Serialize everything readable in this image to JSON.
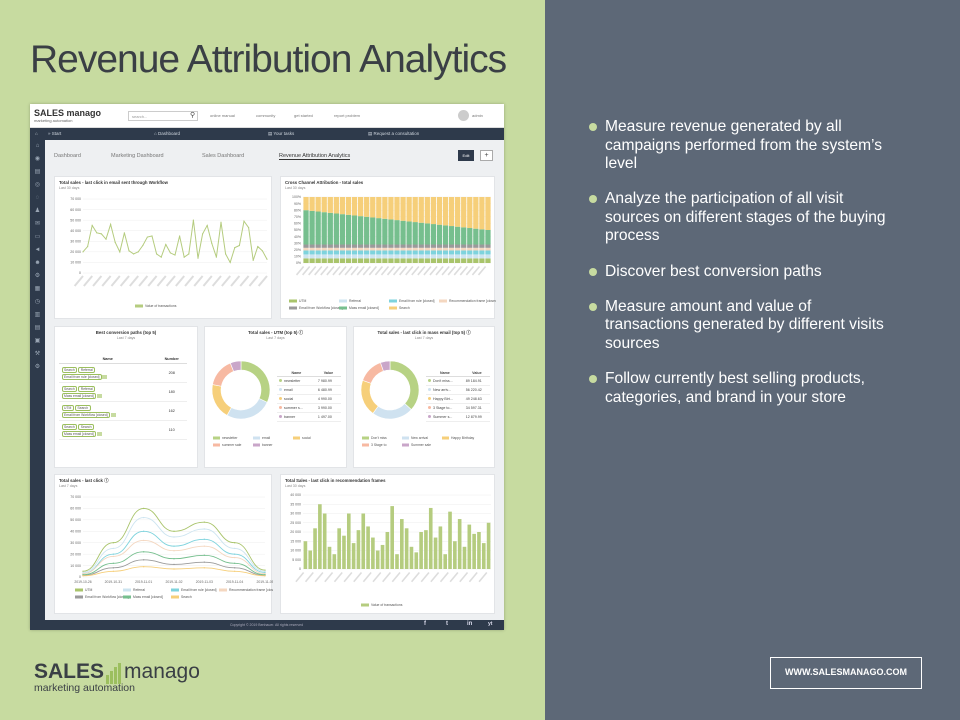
{
  "slide": {
    "title": "Revenue Attribution Analytics",
    "bullets": [
      "Measure revenue generated by all campaigns performed from the system’s level",
      "Analyze the participation of all visit sources on different stages of the buying process",
      "Discover best conversion paths",
      "Measure amount and value of transactions generated by different visits sources",
      "Follow currently best selling products, categories, and brand in your store"
    ],
    "brand_left": "SALES",
    "brand_right": "manago",
    "brand_sub": "marketing automation",
    "url": "WWW.SALESMANAGO.COM",
    "colors": {
      "left_bg": "#c7dba0",
      "right_bg": "#5d6877",
      "accent": "#9cbf5e",
      "nav": "#2e3a4b"
    }
  },
  "app": {
    "logo": "SALES manago",
    "logo_sub": "marketing automation",
    "search_placeholder": "search...",
    "top_links": [
      "online manual",
      "community",
      "get started",
      "report problem"
    ],
    "user": "admin",
    "nav": {
      "start": "Start",
      "dashboard": "Dashboard",
      "your_tasks": "Your tasks",
      "request": "Request a consultation"
    },
    "sidebar_icons": [
      "home-icon",
      "eye-icon",
      "card-icon",
      "target-icon",
      "chat-icon",
      "users-icon",
      "message-icon",
      "monitor-icon",
      "megaphone-icon",
      "group-icon",
      "gear-icon",
      "factory-icon",
      "clock-icon",
      "calendar-icon",
      "document-icon",
      "book-icon",
      "wrench-icon",
      "settings-icon"
    ],
    "tabs": [
      "Dashboard",
      "Marketing Dashboard",
      "Sales Dashboard",
      "Revenue Attribution Analytics"
    ],
    "edit_label": "Edit",
    "plus_label": "+",
    "footer_text": "Copyright © 2019 Benhauer. All rights reserved",
    "social": [
      "f",
      "t",
      "in",
      "yt"
    ]
  },
  "panels": {
    "p1": {
      "title": "Total sales - last click in email sent through Workflow",
      "sub": "Last 30 days"
    },
    "p2": {
      "title": "Cross Channel Attribution - total sales",
      "sub": "Last 30 days"
    },
    "p3": {
      "title": "Best conversion paths (top 5)",
      "sub": "Last 7 days",
      "col_name": "Name",
      "col_number": "Number",
      "rows": [
        {
          "chips": [
            "Search",
            "Referral",
            "Email from rule [closed]"
          ],
          "number": "208"
        },
        {
          "chips": [
            "Search",
            "Referral",
            "Mass email [closed]"
          ],
          "number": "180"
        },
        {
          "chips": [
            "UTM",
            "Search",
            "Email from Workflow [closed]"
          ],
          "number": "162"
        },
        {
          "chips": [
            "Search",
            "Search",
            "Mass email [closed]"
          ],
          "number": "110"
        }
      ]
    },
    "p4": {
      "title": "Total sales - UTM (top 5)",
      "sub": "Last 7 days",
      "col_name": "Name",
      "col_value": "Value",
      "rows": [
        {
          "name": "newsletter",
          "value": "7 980.99"
        },
        {
          "name": "email",
          "value": "6 480.99"
        },
        {
          "name": "social",
          "value": "4 990.00"
        },
        {
          "name": "summer s...",
          "value": "3 990.00"
        },
        {
          "name": "banner",
          "value": "1 497.00"
        }
      ]
    },
    "p5": {
      "title": "Total sales - last click in mass email (top 5)",
      "sub": "Last 7 days",
      "col_name": "Name",
      "col_value": "Value",
      "rows": [
        {
          "name": "Don't miss...",
          "value": "89 184.91"
        },
        {
          "name": "New arriv...",
          "value": "56 220.42"
        },
        {
          "name": "Happy Birt...",
          "value": "49 248.63"
        },
        {
          "name": "3 Stage to...",
          "value": "34 597.31"
        },
        {
          "name": "Summer s...",
          "value": "12 879.99"
        }
      ]
    },
    "p6": {
      "title": "Total sales - last click",
      "sub": "Last 7 days"
    },
    "p7": {
      "title": "Total Sales - last click in recommendation frames",
      "sub": "Last 30 days"
    }
  },
  "chart_data": [
    {
      "type": "line",
      "title": "Total sales - last click in email sent through Workflow",
      "ylim": [
        0,
        70000
      ],
      "yticks": [
        "70 000",
        "60 000",
        "50 000",
        "40 000",
        "30 000",
        "20 000",
        "10 000",
        "0"
      ],
      "series": [
        {
          "name": "Value of transactions",
          "color": "#b5cc7f",
          "values": [
            20000,
            25000,
            45000,
            38000,
            37000,
            32000,
            46000,
            29000,
            20000,
            38000,
            21000,
            18000,
            20000,
            26000,
            34000,
            35000,
            18000,
            15000,
            27000,
            19000,
            17000,
            35000,
            15000,
            18000,
            50000,
            14000,
            37000,
            45000,
            28000,
            15000,
            48000,
            18000,
            10000,
            24000,
            26000,
            49000,
            43000,
            12000,
            25000,
            21000,
            13000
          ]
        }
      ]
    },
    {
      "type": "bar",
      "stacked": true,
      "percent": true,
      "title": "Cross Channel Attribution - total sales",
      "ylim": [
        0,
        100
      ],
      "yticks": [
        "100%",
        "90%",
        "80%",
        "70%",
        "60%",
        "50%",
        "40%",
        "30%",
        "20%",
        "10%",
        "0%"
      ],
      "series": [
        {
          "name": "UTM",
          "color": "#a9c46b"
        },
        {
          "name": "Referral",
          "color": "#cde4f0"
        },
        {
          "name": "Email from rule [closed]",
          "color": "#7ed3dd"
        },
        {
          "name": "Recommendation frame [closed]",
          "color": "#f4d7c0"
        },
        {
          "name": "Email from Workflow [closed]",
          "color": "#9a9a9a"
        },
        {
          "name": "Mass email [closed]",
          "color": "#76bf8e"
        },
        {
          "name": "Search",
          "color": "#f6cf7a"
        }
      ]
    },
    {
      "type": "pie",
      "title": "Total sales - UTM (top 5)",
      "labels": [
        "newsletter",
        "email",
        "social",
        "summer sale",
        "banner"
      ],
      "values": [
        7980.99,
        6480.99,
        4990.0,
        3990.0,
        1497.0
      ],
      "colors": [
        "#b7d284",
        "#cfe2f0",
        "#f6cf7a",
        "#f7b9a2",
        "#c9a6c9"
      ]
    },
    {
      "type": "pie",
      "title": "Total sales - last click in mass email (top 5)",
      "labels": [
        "Don't miss",
        "New arrival",
        "Happy Birthday",
        "3 Stage to",
        "Summer sale"
      ],
      "values": [
        89184.91,
        56220.42,
        49248.63,
        34597.31,
        12879.99
      ],
      "colors": [
        "#b7d284",
        "#cfe2f0",
        "#f6cf7a",
        "#f7b9a2",
        "#c9a6c9"
      ]
    },
    {
      "type": "line",
      "title": "Total sales - last click",
      "categories": [
        "2019-10-26",
        "2019-10-31",
        "2019-11-01",
        "2019-11-02",
        "2019-11-03",
        "2019-11-04",
        "2019-11-05"
      ],
      "ylim": [
        0,
        70000
      ],
      "yticks": [
        "70 000",
        "60 000",
        "50 000",
        "40 000",
        "30 000",
        "20 000",
        "10 000",
        "0"
      ],
      "series": [
        {
          "name": "UTM",
          "color": "#a9c46b",
          "values": [
            5000,
            30000,
            60000,
            40000,
            48000,
            30000,
            6000
          ]
        },
        {
          "name": "Referral",
          "color": "#cde4f0",
          "values": [
            4000,
            25000,
            52000,
            35000,
            42000,
            25000,
            5000
          ]
        },
        {
          "name": "Email from rule [closed]",
          "color": "#7ed3dd",
          "values": [
            3000,
            20000,
            40000,
            27000,
            33000,
            20000,
            4000
          ]
        },
        {
          "name": "Recommendation frame [closed]",
          "color": "#f4d7c0",
          "values": [
            3000,
            18000,
            32000,
            23000,
            27000,
            17000,
            3000
          ]
        },
        {
          "name": "Email from Workflow [closed]",
          "color": "#9a9a9a",
          "values": [
            1500,
            8000,
            15000,
            11000,
            13000,
            8000,
            1500
          ]
        },
        {
          "name": "Mass email [closed]",
          "color": "#76bf8e",
          "values": [
            2000,
            12000,
            22000,
            16000,
            19000,
            12000,
            2000
          ]
        },
        {
          "name": "Search",
          "color": "#f6cf7a",
          "values": [
            1000,
            5000,
            9000,
            7000,
            8000,
            5000,
            1000
          ]
        }
      ]
    },
    {
      "type": "bar",
      "title": "Total Sales - last click in recommendation frames",
      "ylim": [
        0,
        40000
      ],
      "yticks": [
        "40 000",
        "35 000",
        "30 000",
        "25 000",
        "20 000",
        "15 000",
        "10 000",
        "5 000",
        "0"
      ],
      "series": [
        {
          "name": "Value of transactions",
          "color": "#b5cc7f",
          "values": [
            15000,
            10000,
            22000,
            35000,
            30000,
            12000,
            8000,
            22000,
            18000,
            30000,
            14000,
            21000,
            30000,
            23000,
            17000,
            10000,
            13000,
            20000,
            34000,
            8000,
            27000,
            22000,
            12000,
            9000,
            20000,
            21000,
            33000,
            17000,
            23000,
            8000,
            31000,
            15000,
            27000,
            12000,
            24000,
            19000,
            20000,
            14000,
            25000
          ]
        }
      ]
    }
  ]
}
